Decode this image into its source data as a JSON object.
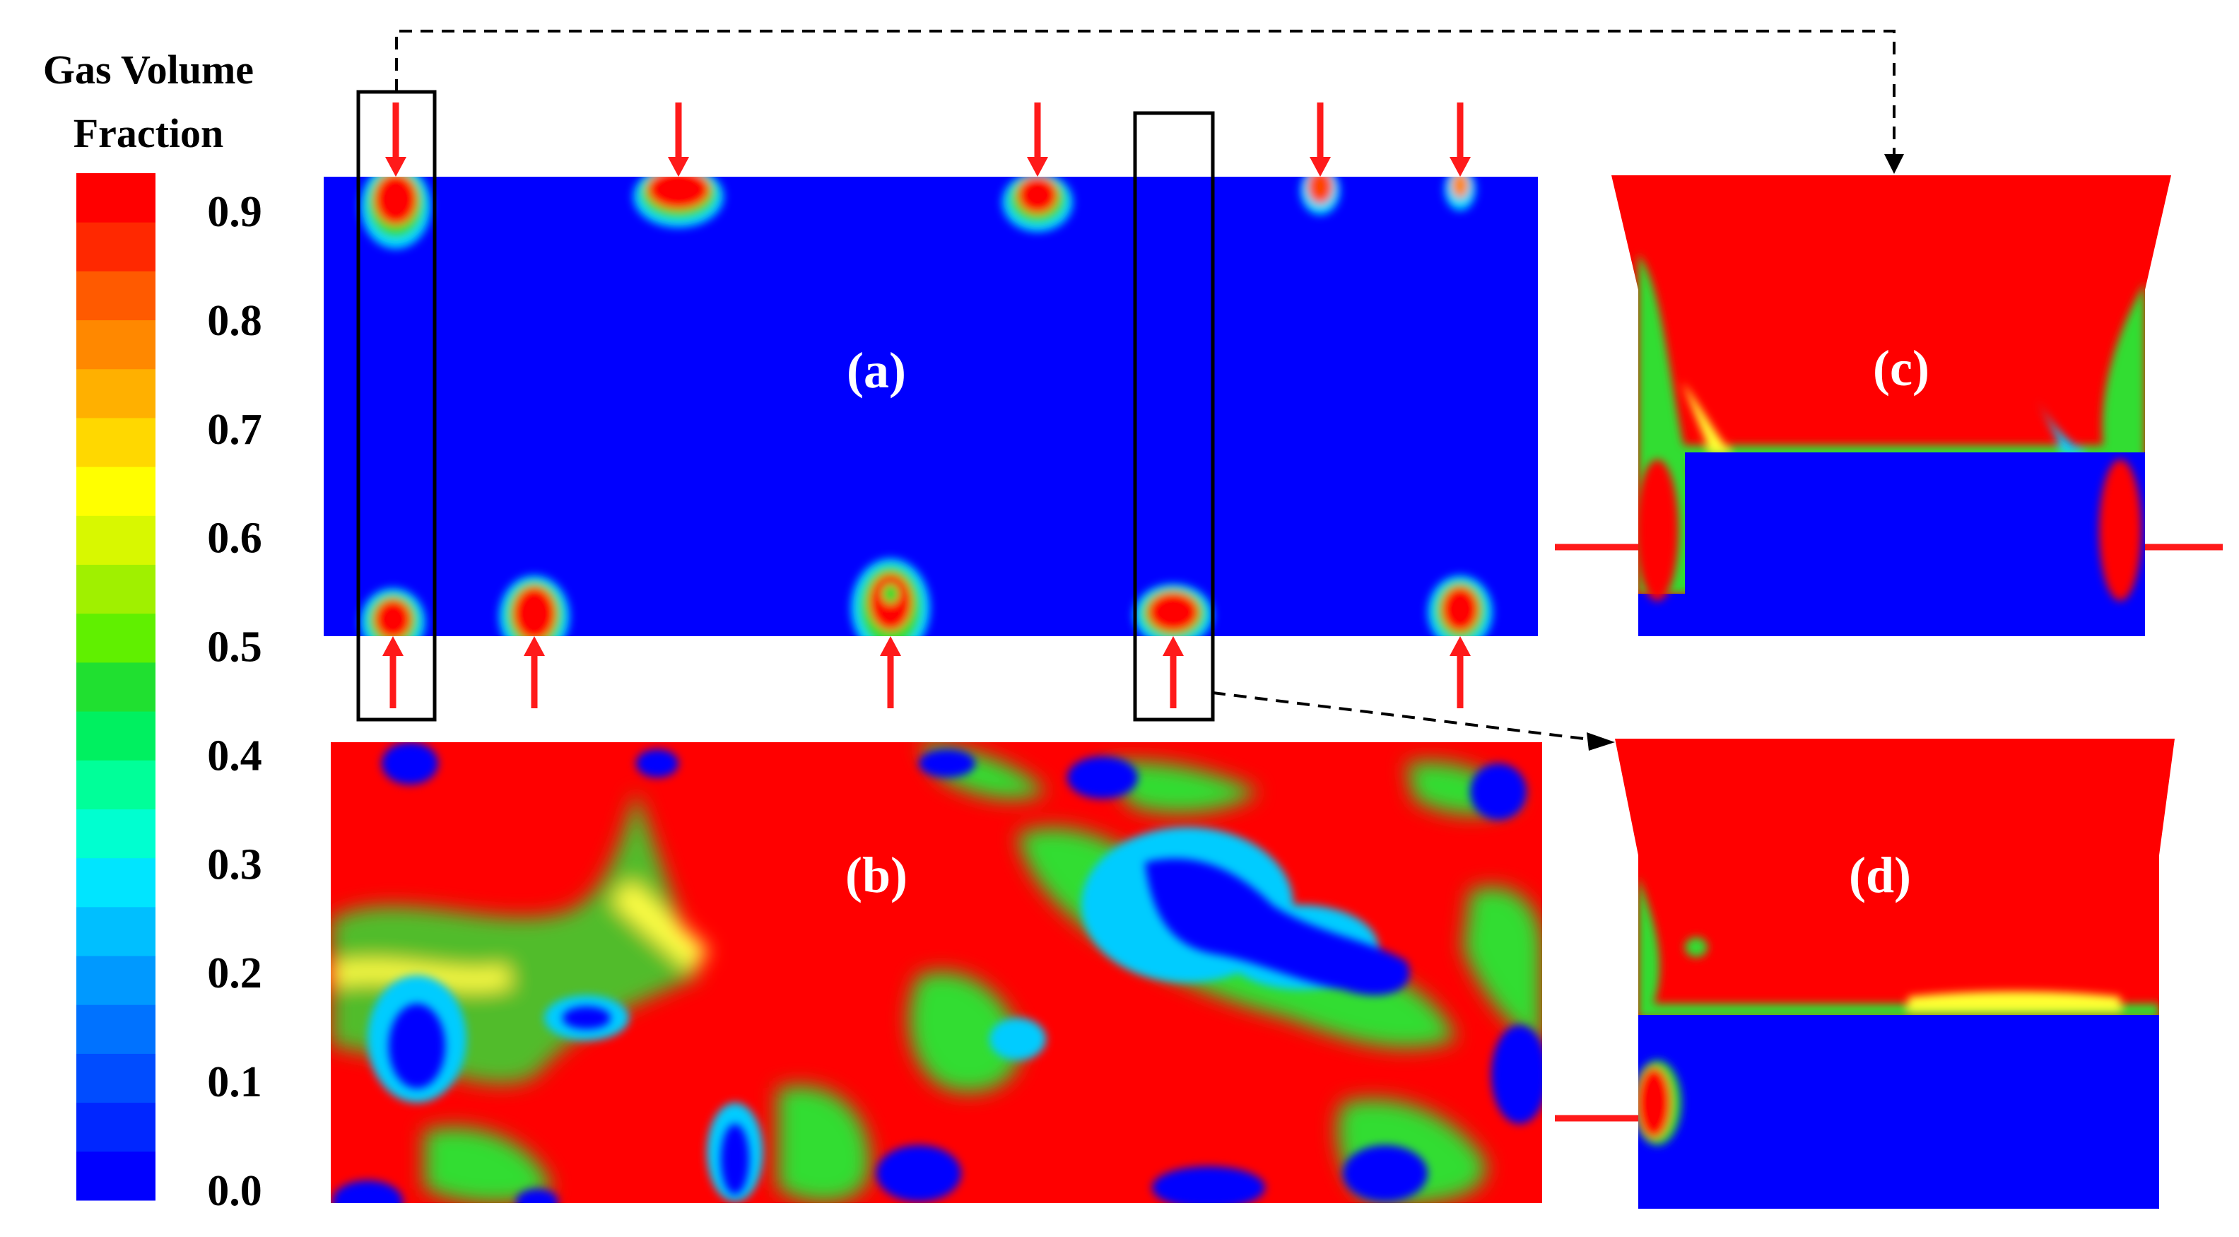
{
  "legend": {
    "title_line1": "Gas Volume",
    "title_line2": "Fraction",
    "ticks": [
      "0.9",
      "0.8",
      "0.7",
      "0.6",
      "0.5",
      "0.4",
      "0.3",
      "0.2",
      "0.1",
      "0.0"
    ],
    "colors": [
      "#0000ff",
      "#0026ff",
      "#004cff",
      "#0072ff",
      "#0099ff",
      "#00bfff",
      "#00e5ff",
      "#00ffd0",
      "#00ff99",
      "#00f060",
      "#20e030",
      "#60f000",
      "#a0f000",
      "#d8f800",
      "#ffff00",
      "#ffd800",
      "#ffb000",
      "#ff8800",
      "#ff5a00",
      "#ff2800",
      "#ff0000"
    ]
  },
  "panels": {
    "a": {
      "label": "(a)"
    },
    "b": {
      "label": "(b)"
    },
    "c": {
      "label": "(c)"
    },
    "d": {
      "label": "(d)"
    }
  },
  "colors": {
    "liquid": "#0000ff",
    "gas": "#ff0000",
    "injector": "#ff1a1a",
    "green": "#33dd33",
    "yellow": "#ffff33",
    "cyan": "#00ccff",
    "frame": "#000000"
  }
}
